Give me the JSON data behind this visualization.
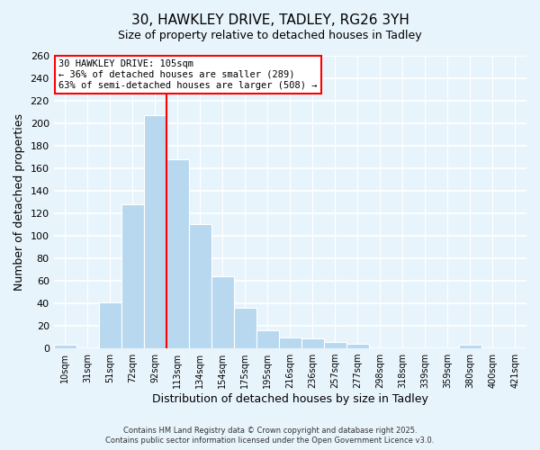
{
  "title": "30, HAWKLEY DRIVE, TADLEY, RG26 3YH",
  "subtitle": "Size of property relative to detached houses in Tadley",
  "xlabel": "Distribution of detached houses by size in Tadley",
  "ylabel": "Number of detached properties",
  "categories": [
    "10sqm",
    "31sqm",
    "51sqm",
    "72sqm",
    "92sqm",
    "113sqm",
    "134sqm",
    "154sqm",
    "175sqm",
    "195sqm",
    "216sqm",
    "236sqm",
    "257sqm",
    "277sqm",
    "298sqm",
    "318sqm",
    "339sqm",
    "359sqm",
    "380sqm",
    "400sqm",
    "421sqm"
  ],
  "values": [
    3,
    0,
    41,
    128,
    207,
    168,
    110,
    64,
    36,
    16,
    10,
    9,
    6,
    4,
    0,
    0,
    0,
    0,
    3,
    0,
    0
  ],
  "bar_color": "#b8d8f0",
  "bar_edge_color": "white",
  "vline_color": "red",
  "ylim": [
    0,
    260
  ],
  "yticks": [
    0,
    20,
    40,
    60,
    80,
    100,
    120,
    140,
    160,
    180,
    200,
    220,
    240,
    260
  ],
  "annotation_title": "30 HAWKLEY DRIVE: 105sqm",
  "annotation_line1": "← 36% of detached houses are smaller (289)",
  "annotation_line2": "63% of semi-detached houses are larger (508) →",
  "footer1": "Contains HM Land Registry data © Crown copyright and database right 2025.",
  "footer2": "Contains public sector information licensed under the Open Government Licence v3.0.",
  "bg_color": "#e8f4fc",
  "plot_bg_color": "#e8f4fc",
  "title_fontsize": 11,
  "subtitle_fontsize": 9,
  "ylabel_text": "Number of detached properties"
}
